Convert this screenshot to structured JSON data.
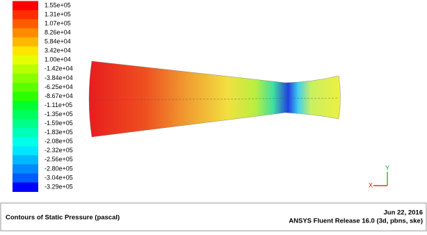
{
  "legend": {
    "labels": [
      "1.55e+05",
      "1.31e+05",
      "1.07e+05",
      "8.26e+04",
      "5.84e+04",
      "3.42e+04",
      "1.00e+04",
      "-1.42e+04",
      "-3.84e+04",
      "-6.25e+04",
      "-8.67e+04",
      "-1.11e+05",
      "-1.35e+05",
      "-1.59e+05",
      "-1.83e+05",
      "-2.08e+05",
      "-2.32e+05",
      "-2.56e+05",
      "-2.80e+05",
      "-3.04e+05",
      "-3.29e+05"
    ],
    "colors": [
      "#ff0000",
      "#ff2e00",
      "#ff5c00",
      "#ff8a00",
      "#ffb800",
      "#ffe600",
      "#e6ff00",
      "#b8ff00",
      "#8aff00",
      "#5cff00",
      "#2eff00",
      "#00ff2e",
      "#00ff5c",
      "#00ff8a",
      "#00ffb8",
      "#00ffe6",
      "#00e6ff",
      "#00b8ff",
      "#008aff",
      "#005cff",
      "#0000ff"
    ]
  },
  "triad": {
    "x": "X",
    "y": "Y"
  },
  "footer": {
    "title": "Contours of Static Pressure (pascal)",
    "date": "Jun 22, 2016",
    "release": "ANSYS Fluent Release 16.0 (3d, pbns, ske)"
  }
}
